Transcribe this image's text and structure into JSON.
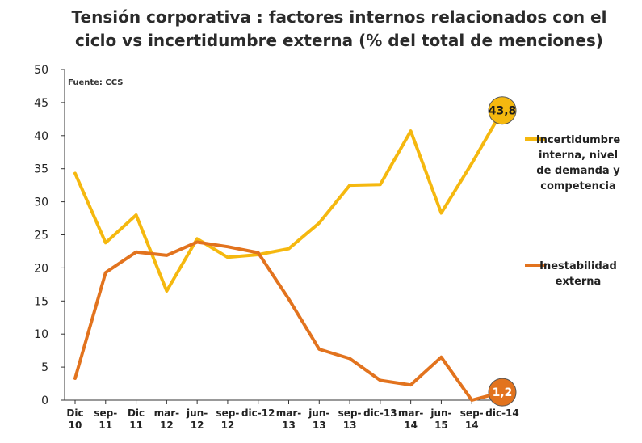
{
  "chart_data": {
    "type": "line",
    "title_line1": "Tensión corporativa : factores internos relacionados con el",
    "title_line2": "ciclo vs incertidumbre externa (% del total de menciones)",
    "source": "Fuente: CCS",
    "xlabel": "",
    "ylabel": "",
    "ylim": [
      0,
      50
    ],
    "yticks": [
      0,
      5,
      10,
      15,
      20,
      25,
      30,
      35,
      40,
      45,
      50
    ],
    "grid": false,
    "legend_position": "right",
    "categories": [
      [
        "Dic",
        "10"
      ],
      [
        "sep-",
        "11"
      ],
      [
        "Dic",
        "11"
      ],
      [
        "mar-",
        "12"
      ],
      [
        "jun-",
        "12"
      ],
      [
        "sep-",
        "12"
      ],
      [
        "dic-12",
        ""
      ],
      [
        "mar-",
        "13"
      ],
      [
        "jun-",
        "13"
      ],
      [
        "sep-",
        "13"
      ],
      [
        "dic-13",
        ""
      ],
      [
        "mar-",
        "14"
      ],
      [
        "jun-",
        "15"
      ],
      [
        "sep-",
        "14"
      ],
      [
        "dic-14",
        ""
      ]
    ],
    "series": [
      {
        "name": "Incertidumbre interna, nivel de demanda y competencia",
        "legend_lines": [
          "Incertidumbre",
          "interna, nivel",
          "de demanda y",
          "competencia"
        ],
        "color": "#F5B80F",
        "values": [
          34.3,
          23.8,
          28.0,
          16.5,
          24.4,
          21.6,
          22.0,
          22.9,
          26.8,
          32.5,
          32.6,
          40.7,
          28.3,
          35.8,
          43.8
        ],
        "end_label": "43,8",
        "end_badge_color": "#F5B80F",
        "end_badge_text_color": "#1a1a1a"
      },
      {
        "name": "Inestabilidad externa",
        "legend_lines": [
          "Inestabilidad",
          "externa"
        ],
        "color": "#E2731E",
        "values": [
          3.3,
          19.3,
          22.4,
          21.9,
          23.9,
          23.2,
          22.3,
          15.3,
          7.7,
          6.3,
          3.0,
          2.3,
          6.5,
          0.0,
          1.2
        ],
        "end_label": "1,2",
        "end_badge_color": "#E2731E",
        "end_badge_text_color": "#ffffff"
      }
    ]
  }
}
